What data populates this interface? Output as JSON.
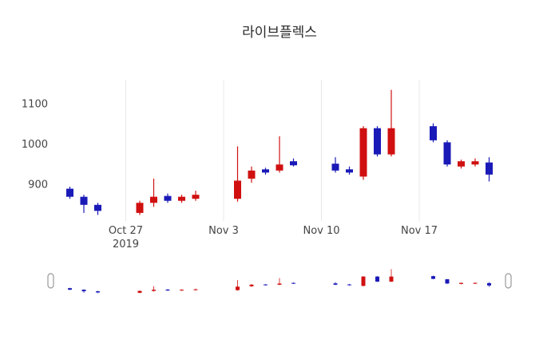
{
  "chart_data": {
    "type": "candlestick",
    "title": "라이브플렉스",
    "increasing_color": "#d01010",
    "decreasing_color": "#1a1ab8",
    "grid_color": "#e8e8e8",
    "y_range": [
      810,
      1160
    ],
    "x_range": [
      "2019-10-22",
      "2019-11-23"
    ],
    "y_ticks": [
      900,
      1000,
      1100
    ],
    "x_ticks": [
      {
        "date": "2019-10-27",
        "label": "Oct 27",
        "sublabel": "2019"
      },
      {
        "date": "2019-11-03",
        "label": "Nov 3",
        "sublabel": ""
      },
      {
        "date": "2019-11-10",
        "label": "Nov 10",
        "sublabel": ""
      },
      {
        "date": "2019-11-17",
        "label": "Nov 17",
        "sublabel": ""
      }
    ],
    "ohlc": [
      {
        "date": "2019-10-23",
        "open": 890,
        "high": 895,
        "low": 865,
        "close": 870
      },
      {
        "date": "2019-10-24",
        "open": 870,
        "high": 875,
        "low": 830,
        "close": 850
      },
      {
        "date": "2019-10-25",
        "open": 850,
        "high": 855,
        "low": 825,
        "close": 835
      },
      {
        "date": "2019-10-28",
        "open": 830,
        "high": 860,
        "low": 825,
        "close": 855
      },
      {
        "date": "2019-10-29",
        "open": 855,
        "high": 915,
        "low": 845,
        "close": 870
      },
      {
        "date": "2019-10-30",
        "open": 872,
        "high": 878,
        "low": 855,
        "close": 860
      },
      {
        "date": "2019-10-31",
        "open": 860,
        "high": 875,
        "low": 855,
        "close": 870
      },
      {
        "date": "2019-11-01",
        "open": 865,
        "high": 885,
        "low": 860,
        "close": 875
      },
      {
        "date": "2019-11-04",
        "open": 865,
        "high": 995,
        "low": 858,
        "close": 910
      },
      {
        "date": "2019-11-05",
        "open": 915,
        "high": 945,
        "low": 905,
        "close": 935
      },
      {
        "date": "2019-11-06",
        "open": 938,
        "high": 942,
        "low": 925,
        "close": 930
      },
      {
        "date": "2019-11-07",
        "open": 935,
        "high": 1020,
        "low": 930,
        "close": 950
      },
      {
        "date": "2019-11-08",
        "open": 958,
        "high": 965,
        "low": 945,
        "close": 948
      },
      {
        "date": "2019-11-11",
        "open": 952,
        "high": 968,
        "low": 930,
        "close": 935
      },
      {
        "date": "2019-11-12",
        "open": 938,
        "high": 945,
        "low": 925,
        "close": 930
      },
      {
        "date": "2019-11-13",
        "open": 920,
        "high": 1045,
        "low": 912,
        "close": 1040
      },
      {
        "date": "2019-11-14",
        "open": 1040,
        "high": 1045,
        "low": 970,
        "close": 975
      },
      {
        "date": "2019-11-15",
        "open": 975,
        "high": 1135,
        "low": 970,
        "close": 1040
      },
      {
        "date": "2019-11-18",
        "open": 1045,
        "high": 1052,
        "low": 1005,
        "close": 1010
      },
      {
        "date": "2019-11-19",
        "open": 1005,
        "high": 1010,
        "low": 945,
        "close": 950
      },
      {
        "date": "2019-11-20",
        "open": 945,
        "high": 962,
        "low": 940,
        "close": 958
      },
      {
        "date": "2019-11-21",
        "open": 950,
        "high": 965,
        "low": 945,
        "close": 958
      },
      {
        "date": "2019-11-22",
        "open": 955,
        "high": 968,
        "low": 908,
        "close": 925
      }
    ],
    "legend": "off",
    "grid": "vertical-only"
  },
  "rangeslider": {
    "handle_color": "#999999",
    "full_range_selected": true
  }
}
